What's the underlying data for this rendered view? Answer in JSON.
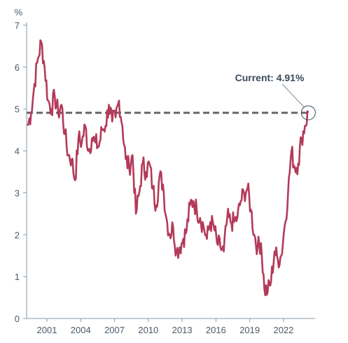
{
  "chart_data": {
    "type": "line",
    "title": "",
    "xlabel": "",
    "ylabel": "%",
    "ylim": [
      0,
      7
    ],
    "xlim": [
      1999.2,
      2024.8
    ],
    "x_ticks": [
      2001,
      2004,
      2007,
      2010,
      2013,
      2016,
      2019,
      2022
    ],
    "x_tick_labels": [
      "2001",
      "2004",
      "2007",
      "2010",
      "2013",
      "2016",
      "2019",
      "2022"
    ],
    "y_ticks": [
      0,
      1,
      2,
      3,
      4,
      5,
      6,
      7
    ],
    "y_tick_labels": [
      "0",
      "1",
      "2",
      "3",
      "4",
      "5",
      "6",
      "7"
    ],
    "grid": false,
    "colors": {
      "line": "#b33a5a",
      "reference": "#666666",
      "axis": "#8a9aab"
    },
    "reference_line": {
      "y": 4.91,
      "style": "dashed"
    },
    "annotation": {
      "text": "Current: 4.91%",
      "x": 2024.2,
      "y": 4.91
    },
    "series": [
      {
        "x": [
          1999.3,
          1999.6,
          1999.9,
          2000.2,
          2000.5,
          2000.8,
          2001.1,
          2001.4,
          2001.7,
          2002.0,
          2002.3,
          2002.6,
          2002.9,
          2003.2,
          2003.5,
          2003.8,
          2004.1,
          2004.4,
          2004.7,
          2005.0,
          2005.3,
          2005.6,
          2005.9,
          2006.2,
          2006.5,
          2006.8,
          2007.1,
          2007.4,
          2007.7,
          2008.0,
          2008.3,
          2008.6,
          2008.9,
          2009.2,
          2009.5,
          2009.8,
          2010.1,
          2010.4,
          2010.7,
          2011.0,
          2011.3,
          2011.6,
          2011.9,
          2012.2,
          2012.5,
          2012.8,
          2013.1,
          2013.4,
          2013.7,
          2014.0,
          2014.3,
          2014.6,
          2014.9,
          2015.2,
          2015.5,
          2015.8,
          2016.1,
          2016.4,
          2016.7,
          2017.0,
          2017.3,
          2017.6,
          2017.9,
          2018.2,
          2018.5,
          2018.8,
          2019.1,
          2019.4,
          2019.7,
          2020.0,
          2020.3,
          2020.6,
          2020.9,
          2021.2,
          2021.5,
          2021.8,
          2022.1,
          2022.4,
          2022.7,
          2023.0,
          2023.3,
          2023.6,
          2023.9,
          2024.2
        ],
        "values": [
          4.6,
          4.9,
          5.6,
          6.2,
          6.6,
          6.0,
          5.2,
          5.0,
          5.3,
          4.9,
          5.1,
          4.4,
          3.9,
          3.8,
          3.3,
          4.3,
          4.2,
          4.6,
          4.0,
          4.3,
          4.2,
          4.1,
          4.5,
          4.6,
          5.1,
          4.7,
          4.8,
          5.2,
          4.6,
          3.8,
          3.6,
          3.9,
          2.5,
          3.0,
          3.7,
          3.5,
          3.7,
          3.1,
          2.7,
          3.4,
          3.2,
          2.4,
          2.0,
          2.2,
          1.6,
          1.7,
          1.9,
          2.1,
          2.7,
          2.8,
          2.6,
          2.4,
          2.2,
          1.9,
          2.3,
          2.2,
          1.8,
          1.7,
          1.6,
          2.4,
          2.3,
          2.3,
          2.4,
          2.8,
          3.0,
          3.1,
          2.6,
          2.0,
          1.7,
          1.8,
          0.7,
          0.65,
          0.9,
          1.6,
          1.4,
          1.5,
          2.2,
          3.0,
          4.0,
          3.6,
          3.7,
          4.3,
          4.6,
          4.91
        ]
      }
    ]
  }
}
